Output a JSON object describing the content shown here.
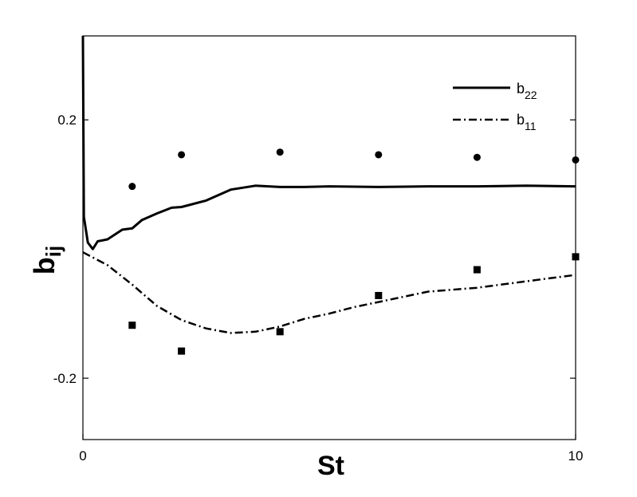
{
  "chart_data": {
    "type": "line",
    "xlabel": "St",
    "ylabel_main": "b",
    "ylabel_sub": "ij",
    "xlim": [
      0,
      10
    ],
    "ylim": [
      -0.295,
      0.33
    ],
    "x_ticks": [
      {
        "value": 0,
        "label": "0"
      },
      {
        "value": 10,
        "label": "10"
      }
    ],
    "y_ticks": [
      {
        "value": 0.2,
        "label": "0.2"
      },
      {
        "value": -0.2,
        "label": "-0.2"
      }
    ],
    "grid": false,
    "legend_position": "top-right",
    "series": [
      {
        "name_main": "b",
        "name_sub": "22",
        "style": "solid",
        "points": [
          [
            0,
            0.33
          ],
          [
            0.02,
            0.05
          ],
          [
            0.1,
            0.01
          ],
          [
            0.2,
            0.0
          ],
          [
            0.3,
            0.012
          ],
          [
            0.5,
            0.015
          ],
          [
            0.8,
            0.03
          ],
          [
            1.0,
            0.032
          ],
          [
            1.2,
            0.045
          ],
          [
            1.5,
            0.055
          ],
          [
            1.8,
            0.064
          ],
          [
            2.0,
            0.065
          ],
          [
            2.5,
            0.075
          ],
          [
            3.0,
            0.092
          ],
          [
            3.5,
            0.098
          ],
          [
            4.0,
            0.096
          ],
          [
            4.5,
            0.096
          ],
          [
            5.0,
            0.097
          ],
          [
            6.0,
            0.096
          ],
          [
            7.0,
            0.097
          ],
          [
            8.0,
            0.097
          ],
          [
            9.0,
            0.098
          ],
          [
            10.0,
            0.097
          ]
        ]
      },
      {
        "name_main": "b",
        "name_sub": "11",
        "style": "dash-dot",
        "points": [
          [
            0,
            -0.005
          ],
          [
            0.5,
            -0.025
          ],
          [
            1.0,
            -0.055
          ],
          [
            1.5,
            -0.088
          ],
          [
            2.0,
            -0.11
          ],
          [
            2.5,
            -0.123
          ],
          [
            3.0,
            -0.13
          ],
          [
            3.5,
            -0.128
          ],
          [
            4.0,
            -0.12
          ],
          [
            4.5,
            -0.108
          ],
          [
            5.0,
            -0.1
          ],
          [
            5.5,
            -0.09
          ],
          [
            6.0,
            -0.082
          ],
          [
            7.0,
            -0.066
          ],
          [
            8.0,
            -0.06
          ],
          [
            9.0,
            -0.05
          ],
          [
            10.0,
            -0.04
          ]
        ]
      }
    ],
    "markers": [
      {
        "shape": "circle",
        "points": [
          [
            1.0,
            0.097
          ],
          [
            2.0,
            0.146
          ],
          [
            4.0,
            0.15
          ],
          [
            6.0,
            0.146
          ],
          [
            8.0,
            0.142
          ],
          [
            10.0,
            0.138
          ]
        ]
      },
      {
        "shape": "square",
        "points": [
          [
            1.0,
            -0.118
          ],
          [
            2.0,
            -0.158
          ],
          [
            4.0,
            -0.128
          ],
          [
            6.0,
            -0.072
          ],
          [
            8.0,
            -0.032
          ],
          [
            10.0,
            -0.012
          ]
        ]
      }
    ]
  }
}
